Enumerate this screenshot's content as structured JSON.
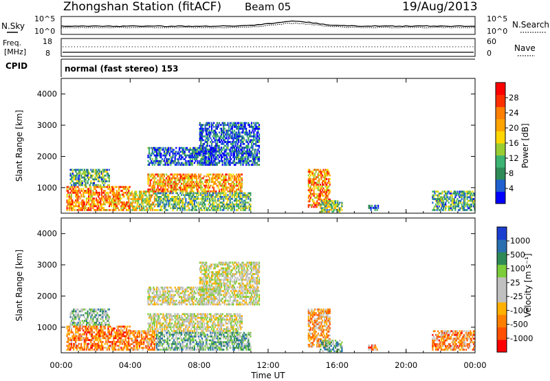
{
  "header": {
    "title": "Zhongshan Station (fitACF)",
    "beam": "Beam 05",
    "date": "19/Aug/2013"
  },
  "panels": {
    "nsky": {
      "label": "N.Sky",
      "ticks": [
        "10^5",
        "10^0"
      ]
    },
    "nsearch": {
      "label": "N.Search",
      "ticks": [
        "10^5",
        "10^0"
      ]
    },
    "freq": {
      "label_top": "Freq.",
      "label_bot": "[MHz]",
      "ticks": [
        "18",
        "8"
      ]
    },
    "nave": {
      "label": "Nave",
      "ticks": [
        "60",
        "0"
      ]
    },
    "cpid": {
      "label": "CPID",
      "value": "normal (fast stereo) 153"
    }
  },
  "chart_data": [
    {
      "type": "heatmap",
      "title": "",
      "xlabel": "Time UT",
      "ylabel": "Slant Range [km]",
      "xlim": [
        "00:00",
        "24:00"
      ],
      "ylim": [
        180,
        4500
      ],
      "yticks": [
        1000,
        2000,
        3000,
        4000
      ],
      "xticks": [
        "00:00",
        "04:00",
        "08:00",
        "12:00",
        "16:00",
        "20:00",
        "00:00"
      ],
      "colorbar": {
        "label": "Power [dB]",
        "ticks": [
          4,
          8,
          12,
          16,
          20,
          24,
          28
        ],
        "range": [
          0,
          32
        ],
        "colors": [
          "#0000ff",
          "#1f5fd0",
          "#2e8b57",
          "#3cb371",
          "#9acd32",
          "#ffd700",
          "#ffa500",
          "#ff7f00",
          "#ff3000",
          "#ff0000"
        ]
      },
      "regions": [
        {
          "t0": 0.3,
          "t1": 4.0,
          "r0": 250,
          "r1": 1050,
          "level": 0.72
        },
        {
          "t0": 0.5,
          "t1": 2.8,
          "r0": 1050,
          "r1": 1600,
          "level": 0.3
        },
        {
          "t0": 4.0,
          "t1": 5.5,
          "r0": 250,
          "r1": 900,
          "level": 0.55
        },
        {
          "t0": 5.0,
          "t1": 10.5,
          "r0": 850,
          "r1": 1450,
          "level": 0.7
        },
        {
          "t0": 5.5,
          "t1": 11.0,
          "r0": 250,
          "r1": 850,
          "level": 0.35
        },
        {
          "t0": 5.0,
          "t1": 9.0,
          "r0": 1700,
          "r1": 2300,
          "level": 0.15
        },
        {
          "t0": 8.0,
          "t1": 11.5,
          "r0": 1700,
          "r1": 3100,
          "level": 0.12
        },
        {
          "t0": 14.3,
          "t1": 15.6,
          "r0": 350,
          "r1": 1600,
          "level": 0.72
        },
        {
          "t0": 15.0,
          "t1": 16.3,
          "r0": 200,
          "r1": 600,
          "level": 0.4
        },
        {
          "t0": 17.8,
          "t1": 18.4,
          "r0": 250,
          "r1": 450,
          "level": 0.1
        },
        {
          "t0": 21.5,
          "t1": 24.0,
          "r0": 250,
          "r1": 900,
          "level": 0.3
        }
      ]
    },
    {
      "type": "heatmap",
      "title": "",
      "xlabel": "Time UT",
      "ylabel": "Slant Range [km]",
      "xlim": [
        "00:00",
        "24:00"
      ],
      "ylim": [
        180,
        4500
      ],
      "yticks": [
        1000,
        2000,
        3000,
        4000
      ],
      "xticks": [
        "00:00",
        "04:00",
        "08:00",
        "12:00",
        "16:00",
        "20:00",
        "00:00"
      ],
      "colorbar": {
        "label": "Velocity [m s⁻¹]",
        "ticks": [
          "1000",
          "500",
          "100",
          "25",
          "-25",
          "-100",
          "-500",
          "-1000"
        ],
        "colors": [
          "#1a3fd0",
          "#2a6fb0",
          "#2e8b57",
          "#7ccd3a",
          "#c0c0c0",
          "#c0c0c0",
          "#ffb000",
          "#ff8000",
          "#ff5000",
          "#ff0000"
        ]
      },
      "regions": [
        {
          "t0": 0.3,
          "t1": 4.0,
          "r0": 250,
          "r1": 1050,
          "level": 0.8
        },
        {
          "t0": 0.5,
          "t1": 2.8,
          "r0": 1050,
          "r1": 1600,
          "level": 0.35
        },
        {
          "t0": 4.0,
          "t1": 5.5,
          "r0": 250,
          "r1": 900,
          "level": 0.75
        },
        {
          "t0": 5.0,
          "t1": 10.5,
          "r0": 850,
          "r1": 1450,
          "level": 0.5
        },
        {
          "t0": 5.5,
          "t1": 11.0,
          "r0": 250,
          "r1": 850,
          "level": 0.3
        },
        {
          "t0": 5.0,
          "t1": 9.0,
          "r0": 1700,
          "r1": 2300,
          "level": 0.5
        },
        {
          "t0": 8.0,
          "t1": 11.5,
          "r0": 1700,
          "r1": 3100,
          "level": 0.5
        },
        {
          "t0": 14.3,
          "t1": 15.6,
          "r0": 350,
          "r1": 1600,
          "level": 0.7
        },
        {
          "t0": 15.0,
          "t1": 16.3,
          "r0": 200,
          "r1": 600,
          "level": 0.3
        },
        {
          "t0": 17.8,
          "t1": 18.4,
          "r0": 250,
          "r1": 450,
          "level": 0.8
        },
        {
          "t0": 21.5,
          "t1": 24.0,
          "r0": 250,
          "r1": 900,
          "level": 0.75
        }
      ]
    }
  ]
}
